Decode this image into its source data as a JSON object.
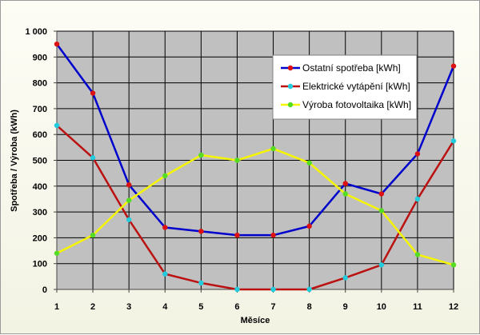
{
  "chart_data": {
    "type": "line",
    "title": "",
    "xlabel": "Měsíce",
    "ylabel": "Spotřeba / Výroba (kWh)",
    "x": [
      1,
      2,
      3,
      4,
      5,
      6,
      7,
      8,
      9,
      10,
      11,
      12
    ],
    "ylim": [
      0,
      1000
    ],
    "yticks": [
      0,
      100,
      200,
      300,
      400,
      500,
      600,
      700,
      800,
      900,
      1000
    ],
    "ytick_labels": [
      "0",
      "100",
      "200",
      "300",
      "400",
      "500",
      "600",
      "700",
      "800",
      "900",
      "1 000"
    ],
    "grid": true,
    "plot_background": "#c0c0c0",
    "legend_position": "top-right",
    "series": [
      {
        "name": "Ostatní spotřeba [kWh]",
        "values": [
          950,
          760,
          405,
          240,
          225,
          210,
          210,
          245,
          410,
          370,
          525,
          865
        ],
        "color": "#0000cc",
        "marker_color": "#dd1111"
      },
      {
        "name": "Elektrické vytápění [kWh]",
        "values": [
          635,
          510,
          270,
          60,
          25,
          0,
          0,
          0,
          45,
          95,
          350,
          575
        ],
        "color": "#bb1111",
        "marker_color": "#22ccdd"
      },
      {
        "name": "Výroba fotovoltaika [kWh]",
        "values": [
          140,
          210,
          345,
          440,
          520,
          500,
          545,
          490,
          370,
          305,
          135,
          95
        ],
        "color": "#f5f500",
        "marker_color": "#55dd22"
      }
    ]
  }
}
